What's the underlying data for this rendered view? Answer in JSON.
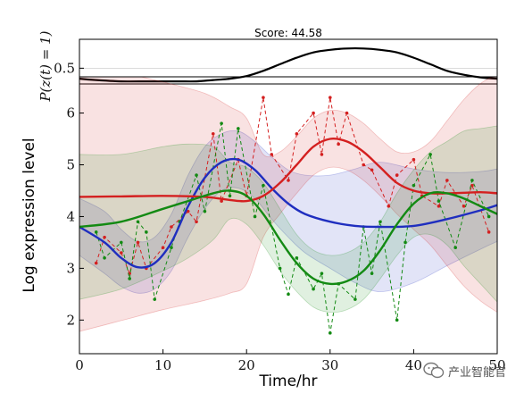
{
  "chart_data": [
    {
      "type": "line",
      "title": "Score: 44.58",
      "ylabel": "P(z(t) = 1)",
      "xlim": [
        0,
        50
      ],
      "ylim": [
        0.38,
        0.72
      ],
      "yticks": [
        0.5
      ],
      "grid": false,
      "series": [
        {
          "color": "#000000",
          "x": [
            0,
            2,
            5,
            8,
            10,
            12,
            14,
            16,
            18,
            20,
            22,
            24,
            26,
            28,
            30,
            32,
            34,
            36,
            38,
            40,
            42,
            44,
            46,
            48,
            50
          ],
          "values": [
            0.42,
            0.41,
            0.4,
            0.4,
            0.4,
            0.4,
            0.4,
            0.41,
            0.42,
            0.44,
            0.48,
            0.53,
            0.58,
            0.62,
            0.64,
            0.65,
            0.65,
            0.64,
            0.62,
            0.58,
            0.53,
            0.48,
            0.45,
            0.43,
            0.42
          ]
        }
      ]
    },
    {
      "type": "line",
      "title": "",
      "xlabel": "Time/hr",
      "ylabel": "Log expression level",
      "xlim": [
        0,
        50
      ],
      "ylim": [
        1.35,
        6.7
      ],
      "xticks": [
        0,
        10,
        20,
        30,
        40,
        50
      ],
      "yticks": [
        2,
        3,
        4,
        5,
        6
      ],
      "grid": false,
      "series": [
        {
          "color": "#1f2ebf",
          "x": [
            0,
            3,
            5,
            7,
            9,
            11,
            13,
            15,
            17,
            19,
            21,
            23,
            25,
            27,
            30,
            33,
            36,
            40,
            44,
            48,
            50
          ],
          "values": [
            3.8,
            3.5,
            3.2,
            3.02,
            3.1,
            3.5,
            4.2,
            4.75,
            5.05,
            5.1,
            4.9,
            4.55,
            4.25,
            4.05,
            3.9,
            3.82,
            3.8,
            3.82,
            3.95,
            4.12,
            4.22
          ],
          "band": [
            0.55,
            0.6,
            0.55,
            0.5,
            0.5,
            0.55,
            0.6,
            0.6,
            0.55,
            0.55,
            0.55,
            0.6,
            0.65,
            0.75,
            0.9,
            1.1,
            1.25,
            1.1,
            0.9,
            0.75,
            0.7
          ]
        },
        {
          "color": "#d42020",
          "x": [
            0,
            5,
            10,
            15,
            18,
            20,
            22,
            24,
            26,
            28,
            30,
            32,
            34,
            36,
            38,
            40,
            42,
            44,
            46,
            48,
            50
          ],
          "values": [
            4.38,
            4.39,
            4.4,
            4.38,
            4.32,
            4.3,
            4.4,
            4.65,
            5.0,
            5.35,
            5.5,
            5.45,
            5.25,
            4.95,
            4.65,
            4.5,
            4.45,
            4.45,
            4.46,
            4.47,
            4.45
          ],
          "band": [
            2.6,
            2.4,
            2.2,
            2.0,
            1.8,
            1.6,
            0.8,
            0.6,
            0.55,
            0.55,
            0.55,
            0.55,
            0.55,
            0.55,
            0.6,
            0.75,
            1.0,
            1.4,
            1.8,
            2.1,
            2.3
          ]
        },
        {
          "color": "#138a13",
          "x": [
            0,
            5,
            10,
            13,
            16,
            18,
            20,
            22,
            24,
            26,
            28,
            30,
            32,
            34,
            36,
            38,
            40,
            42,
            44,
            46,
            48,
            50
          ],
          "values": [
            3.8,
            3.9,
            4.15,
            4.3,
            4.45,
            4.5,
            4.4,
            4.05,
            3.55,
            3.1,
            2.8,
            2.7,
            2.75,
            2.95,
            3.35,
            3.85,
            4.25,
            4.45,
            4.45,
            4.35,
            4.2,
            4.05
          ],
          "band": [
            1.4,
            1.3,
            1.2,
            1.1,
            0.9,
            0.55,
            0.55,
            0.6,
            0.6,
            0.55,
            0.55,
            0.55,
            0.55,
            0.55,
            0.55,
            0.6,
            0.65,
            0.8,
            1.0,
            1.3,
            1.5,
            1.7
          ]
        }
      ],
      "observations": [
        {
          "color": "#d42020",
          "x": [
            2,
            3,
            5,
            6,
            7,
            8,
            10,
            11,
            13,
            14,
            16,
            17,
            19,
            20,
            22,
            23,
            25,
            26,
            28,
            29,
            30,
            31,
            32,
            34,
            35,
            37,
            38,
            40,
            41,
            43,
            44,
            46,
            47,
            49
          ],
          "values": [
            3.1,
            3.6,
            3.3,
            2.9,
            3.5,
            3.0,
            3.4,
            3.8,
            4.1,
            3.9,
            5.6,
            4.3,
            5.1,
            4.4,
            6.3,
            5.2,
            4.7,
            5.6,
            6.0,
            5.2,
            6.3,
            5.4,
            6.0,
            5.0,
            4.9,
            4.2,
            4.8,
            5.1,
            4.4,
            4.2,
            4.7,
            4.2,
            4.6,
            3.7
          ]
        },
        {
          "color": "#138a13",
          "x": [
            2,
            3,
            5,
            6,
            7,
            8,
            9,
            11,
            12,
            14,
            15,
            17,
            18,
            19,
            21,
            22,
            24,
            25,
            26,
            28,
            29,
            30,
            31,
            33,
            34,
            35,
            36,
            38,
            39,
            40,
            42,
            43,
            45,
            47,
            49
          ],
          "values": [
            3.7,
            3.2,
            3.5,
            2.8,
            3.9,
            3.7,
            2.4,
            3.4,
            3.9,
            4.8,
            4.1,
            5.8,
            4.4,
            5.7,
            4.0,
            4.6,
            3.0,
            2.5,
            3.2,
            2.6,
            2.9,
            1.75,
            2.7,
            2.4,
            3.8,
            2.9,
            3.9,
            2.0,
            3.5,
            4.6,
            5.2,
            4.3,
            3.4,
            4.7,
            4.0
          ]
        }
      ]
    }
  ],
  "watermark": {
    "text": "产业智能官",
    "icon": "wechat-icon"
  }
}
